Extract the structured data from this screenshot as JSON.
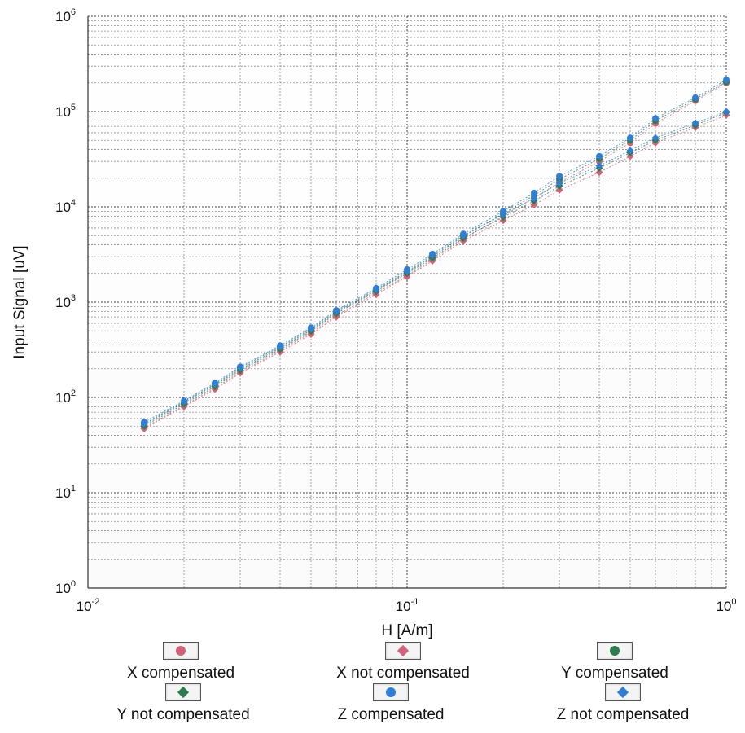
{
  "chart_data": {
    "type": "scatter",
    "title": "",
    "xlabel": "H [A/m]",
    "ylabel": "Input Signal [uV]",
    "xscale": "log",
    "yscale": "log",
    "xlim": [
      0.01,
      1
    ],
    "ylim": [
      1,
      1000000
    ],
    "grid": true,
    "legend_position": "bottom",
    "x_ticks": [
      {
        "base": "10",
        "exp": "-2"
      },
      {
        "base": "10",
        "exp": "-1"
      },
      {
        "base": "10",
        "exp": "0"
      }
    ],
    "y_ticks": [
      {
        "base": "10",
        "exp": "0"
      },
      {
        "base": "10",
        "exp": "1"
      },
      {
        "base": "10",
        "exp": "2"
      },
      {
        "base": "10",
        "exp": "3"
      },
      {
        "base": "10",
        "exp": "4"
      },
      {
        "base": "10",
        "exp": "5"
      },
      {
        "base": "10",
        "exp": "6"
      }
    ],
    "series": [
      {
        "name": "X compensated",
        "marker": "circle",
        "color": "#d2627a",
        "x": [
          0.015,
          0.02,
          0.025,
          0.03,
          0.04,
          0.05,
          0.06,
          0.08,
          0.1,
          0.12,
          0.15,
          0.2,
          0.25,
          0.3,
          0.4,
          0.5,
          0.6,
          0.8,
          1.0
        ],
        "y": [
          48,
          82,
          125,
          185,
          310,
          480,
          720,
          1250,
          1900,
          2800,
          4600,
          8000,
          12500,
          18000,
          30000,
          47000,
          75000,
          130000,
          200000
        ]
      },
      {
        "name": "X not compensated",
        "marker": "diamond",
        "color": "#d2627a",
        "x": [
          0.015,
          0.02,
          0.025,
          0.03,
          0.04,
          0.05,
          0.06,
          0.08,
          0.1,
          0.12,
          0.15,
          0.2,
          0.25,
          0.3,
          0.4,
          0.5,
          0.6,
          0.8,
          1.0
        ],
        "y": [
          47,
          80,
          122,
          180,
          300,
          460,
          700,
          1200,
          1850,
          2700,
          4400,
          7200,
          10500,
          15000,
          23000,
          34000,
          47000,
          68000,
          92000
        ]
      },
      {
        "name": "Y compensated",
        "marker": "circle",
        "color": "#2e7d4f",
        "x": [
          0.015,
          0.02,
          0.025,
          0.03,
          0.04,
          0.05,
          0.06,
          0.08,
          0.1,
          0.12,
          0.15,
          0.2,
          0.25,
          0.3,
          0.4,
          0.5,
          0.6,
          0.8,
          1.0
        ],
        "y": [
          52,
          88,
          135,
          198,
          330,
          510,
          780,
          1330,
          2050,
          3000,
          4900,
          8500,
          13200,
          19500,
          32000,
          50000,
          80000,
          135000,
          205000
        ]
      },
      {
        "name": "Y not compensated",
        "marker": "diamond",
        "color": "#2e7d4f",
        "x": [
          0.015,
          0.02,
          0.025,
          0.03,
          0.04,
          0.05,
          0.06,
          0.08,
          0.1,
          0.12,
          0.15,
          0.2,
          0.25,
          0.3,
          0.4,
          0.5,
          0.6,
          0.8,
          1.0
        ],
        "y": [
          50,
          85,
          130,
          192,
          320,
          495,
          760,
          1300,
          2000,
          2900,
          4700,
          7800,
          11500,
          16500,
          25500,
          37000,
          50000,
          72000,
          98000
        ]
      },
      {
        "name": "Z compensated",
        "marker": "circle",
        "color": "#2f7fd6",
        "x": [
          0.015,
          0.02,
          0.025,
          0.03,
          0.04,
          0.05,
          0.06,
          0.08,
          0.1,
          0.12,
          0.15,
          0.2,
          0.25,
          0.3,
          0.4,
          0.5,
          0.6,
          0.8,
          1.0
        ],
        "y": [
          55,
          92,
          142,
          210,
          350,
          540,
          820,
          1400,
          2200,
          3200,
          5200,
          9000,
          14000,
          21000,
          34000,
          53000,
          85000,
          140000,
          215000
        ]
      },
      {
        "name": "Z not compensated",
        "marker": "diamond",
        "color": "#2f7fd6",
        "x": [
          0.015,
          0.02,
          0.025,
          0.03,
          0.04,
          0.05,
          0.06,
          0.08,
          0.1,
          0.12,
          0.15,
          0.2,
          0.25,
          0.3,
          0.4,
          0.5,
          0.6,
          0.8,
          1.0
        ],
        "y": [
          53,
          90,
          138,
          205,
          340,
          525,
          800,
          1360,
          2100,
          3100,
          5000,
          8300,
          12300,
          17800,
          27000,
          39000,
          53000,
          76000,
          100000
        ]
      }
    ]
  }
}
